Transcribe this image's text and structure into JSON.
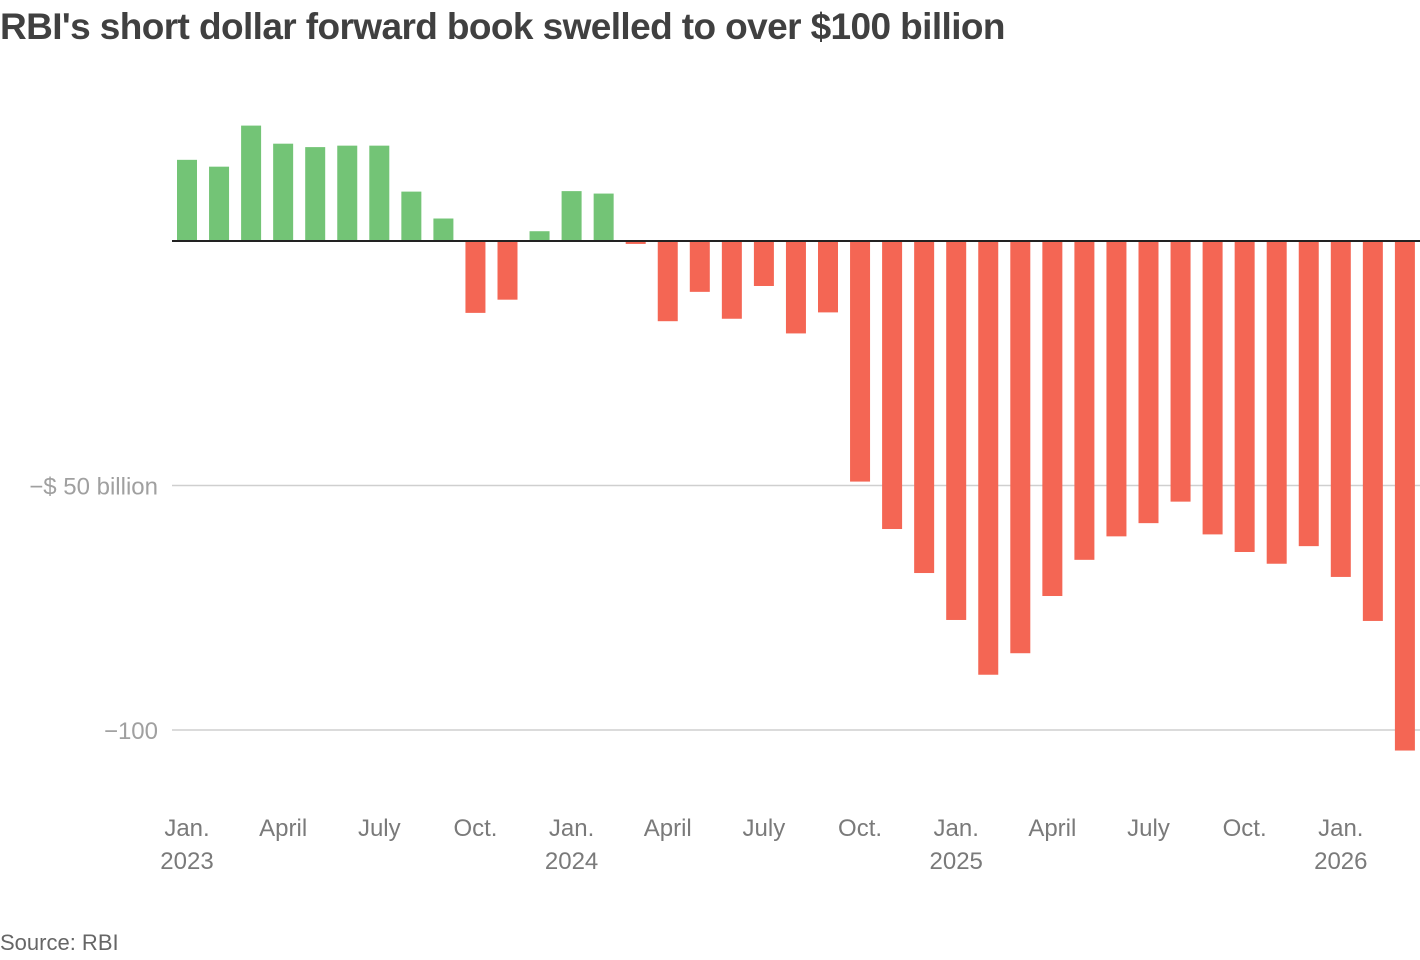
{
  "chart_data": {
    "type": "bar",
    "title": "RBI's short dollar forward book swelled to over $100 billion",
    "source": "Source: RBI",
    "unit": "billion USD",
    "ylim": [
      -110,
      25
    ],
    "yticks": [
      {
        "value": -50,
        "label": "−$ 50 billion"
      },
      {
        "value": -100,
        "label": "−100"
      }
    ],
    "grid": true,
    "categories": [
      "2023-01",
      "2023-02",
      "2023-03",
      "2023-04",
      "2023-05",
      "2023-06",
      "2023-07",
      "2023-08",
      "2023-09",
      "2023-10",
      "2023-11",
      "2023-12",
      "2024-01",
      "2024-02",
      "2024-03",
      "2024-04",
      "2024-05",
      "2024-06",
      "2024-07",
      "2024-08",
      "2024-09",
      "2024-10",
      "2024-11",
      "2024-12",
      "2025-01",
      "2025-02",
      "2025-03",
      "2025-04",
      "2025-05",
      "2025-06",
      "2025-07",
      "2025-08",
      "2025-09",
      "2025-10",
      "2025-11",
      "2025-12",
      "2026-01",
      "2026-02",
      "2026-03"
    ],
    "values": [
      16.6,
      15.2,
      23.6,
      19.9,
      19.2,
      19.5,
      19.5,
      10.1,
      4.6,
      -14.7,
      -12.0,
      2.0,
      10.2,
      9.7,
      -0.6,
      -16.4,
      -10.4,
      -15.9,
      -9.2,
      -18.9,
      -14.6,
      -49.2,
      -58.9,
      -67.9,
      -77.5,
      -88.7,
      -84.3,
      -72.6,
      -65.2,
      -60.4,
      -57.7,
      -53.3,
      -60.0,
      -63.6,
      -66.0,
      -62.4,
      -68.7,
      -77.7,
      -104.2
    ],
    "xlabels": [
      {
        "index": 0,
        "line1": "Jan.",
        "line2": "2023"
      },
      {
        "index": 3,
        "line1": "April",
        "line2": ""
      },
      {
        "index": 6,
        "line1": "July",
        "line2": ""
      },
      {
        "index": 9,
        "line1": "Oct.",
        "line2": ""
      },
      {
        "index": 12,
        "line1": "Jan.",
        "line2": "2024"
      },
      {
        "index": 15,
        "line1": "April",
        "line2": ""
      },
      {
        "index": 18,
        "line1": "July",
        "line2": ""
      },
      {
        "index": 21,
        "line1": "Oct.",
        "line2": ""
      },
      {
        "index": 24,
        "line1": "Jan.",
        "line2": "2025"
      },
      {
        "index": 27,
        "line1": "April",
        "line2": ""
      },
      {
        "index": 30,
        "line1": "July",
        "line2": ""
      },
      {
        "index": 33,
        "line1": "Oct.",
        "line2": ""
      },
      {
        "index": 36,
        "line1": "Jan.",
        "line2": "2026"
      }
    ],
    "colors": {
      "positive": "#73c476",
      "negative": "#f46654",
      "gridline": "#cfcfcf",
      "zeroline": "#222222"
    }
  }
}
